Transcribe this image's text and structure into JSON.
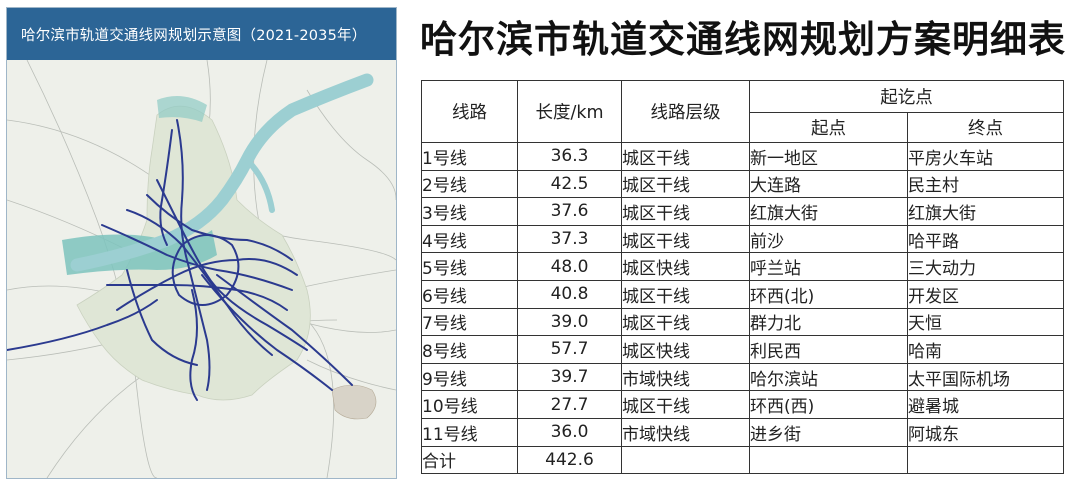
{
  "map": {
    "title": "哈尔滨市轨道交通线网规划示意图（2021-2035年）",
    "colors": {
      "header": "#2c6596",
      "land": "#eef0ea",
      "urban": "#dfe6d6",
      "river": "#9ccfd2",
      "green": "#7cc3bd",
      "line": "#2b3a8f",
      "road": "#b9bdb7"
    }
  },
  "table": {
    "title": "哈尔滨市轨道交通线网规划方案明细表",
    "headers": {
      "line": "线路",
      "length": "长度/km",
      "level": "线路层级",
      "points": "起讫点",
      "start": "起点",
      "end": "终点"
    },
    "rows": [
      {
        "line": "1号线",
        "length": "36.3",
        "level": "城区干线",
        "start": "新一地区",
        "end": "平房火车站"
      },
      {
        "line": "2号线",
        "length": "42.5",
        "level": "城区干线",
        "start": "大连路",
        "end": "民主村"
      },
      {
        "line": "3号线",
        "length": "37.6",
        "level": "城区干线",
        "start": "红旗大街",
        "end": "红旗大街"
      },
      {
        "line": "4号线",
        "length": "37.3",
        "level": "城区干线",
        "start": "前沙",
        "end": "哈平路"
      },
      {
        "line": "5号线",
        "length": "48.0",
        "level": "城区快线",
        "start": "呼兰站",
        "end": "三大动力"
      },
      {
        "line": "6号线",
        "length": "40.8",
        "level": "城区干线",
        "start": "环西(北)",
        "end": "开发区"
      },
      {
        "line": "7号线",
        "length": "39.0",
        "level": "城区干线",
        "start": "群力北",
        "end": "天恒"
      },
      {
        "line": "8号线",
        "length": "57.7",
        "level": "城区快线",
        "start": "利民西",
        "end": "哈南"
      },
      {
        "line": "9号线",
        "length": "39.7",
        "level": "市域快线",
        "start": "哈尔滨站",
        "end": "太平国际机场"
      },
      {
        "line": "10号线",
        "length": "27.7",
        "level": "城区干线",
        "start": "环西(西)",
        "end": "避暑城"
      },
      {
        "line": "11号线",
        "length": "36.0",
        "level": "市域快线",
        "start": "进乡街",
        "end": "阿城东"
      }
    ],
    "total": {
      "label": "合计",
      "length": "442.6"
    }
  }
}
